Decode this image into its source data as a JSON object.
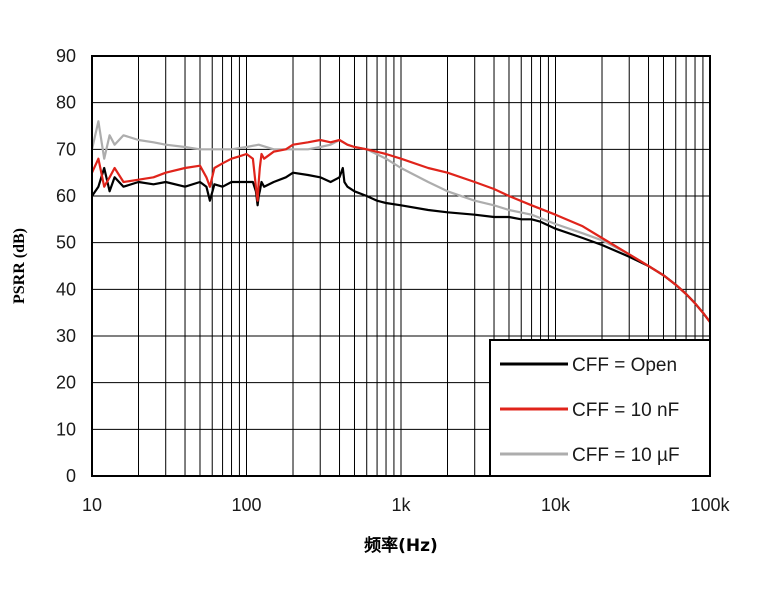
{
  "chart_data": {
    "type": "line",
    "title": "",
    "xlabel": "频率(Hz)",
    "ylabel": "PSRR (dB)",
    "x_scale": "log",
    "xlim": [
      10,
      100000
    ],
    "ylim": [
      0,
      90
    ],
    "x_ticks": [
      10,
      100,
      1000,
      10000,
      100000
    ],
    "x_tick_labels": [
      "10",
      "100",
      "1k",
      "10k",
      "100k"
    ],
    "y_ticks": [
      0,
      10,
      20,
      30,
      40,
      50,
      60,
      70,
      80,
      90
    ],
    "y_tick_labels": [
      "0",
      "10",
      "20",
      "30",
      "40",
      "50",
      "60",
      "70",
      "80",
      "90"
    ],
    "grid": true,
    "legend_position": "bottom-right",
    "series": [
      {
        "name": "CFF = Open",
        "color": "#000000",
        "x": [
          10,
          11,
          12,
          13,
          14,
          16,
          20,
          25,
          30,
          40,
          50,
          55,
          58,
          62,
          70,
          80,
          90,
          100,
          110,
          115,
          118,
          120,
          122,
          125,
          130,
          150,
          180,
          200,
          250,
          300,
          350,
          400,
          420,
          430,
          450,
          500,
          600,
          700,
          800,
          1000,
          1500,
          2000,
          3000,
          4000,
          5000,
          6000,
          7000,
          8000,
          10000,
          15000,
          20000,
          30000,
          40000,
          50000,
          60000,
          70000,
          80000,
          90000,
          100000
        ],
        "values": [
          60,
          62,
          66,
          61,
          64,
          62,
          63,
          62.5,
          63,
          62,
          63,
          62,
          59,
          62.5,
          62,
          63,
          63,
          63,
          63,
          61,
          58,
          60,
          61,
          63,
          62,
          63,
          64,
          65,
          64.5,
          64,
          63,
          64,
          66,
          63,
          62,
          61,
          60,
          59,
          58.5,
          58,
          57,
          56.5,
          56,
          55.5,
          55.5,
          55,
          55,
          54.5,
          53,
          51,
          49.5,
          47,
          45,
          43,
          41,
          39,
          37,
          35,
          33
        ]
      },
      {
        "name": "CFF = 10 nF",
        "color": "#e0241b",
        "x": [
          10,
          11,
          12,
          13,
          14,
          16,
          20,
          25,
          30,
          40,
          50,
          55,
          58,
          62,
          70,
          80,
          90,
          100,
          110,
          115,
          118,
          120,
          122,
          125,
          130,
          150,
          180,
          200,
          250,
          300,
          350,
          400,
          450,
          500,
          600,
          800,
          1000,
          1500,
          2000,
          3000,
          4000,
          5000,
          7000,
          10000,
          15000,
          20000,
          30000,
          40000,
          50000,
          60000,
          70000,
          80000,
          90000,
          100000
        ],
        "values": [
          65,
          68,
          62,
          64,
          66,
          63,
          63.5,
          64,
          65,
          66,
          66.5,
          64,
          62,
          66,
          67,
          68,
          68.5,
          69,
          68,
          62,
          59,
          63,
          66,
          69,
          68,
          69.5,
          70,
          71,
          71.5,
          72,
          71.5,
          72,
          71,
          70.5,
          70,
          69,
          68,
          66,
          65,
          63,
          61.5,
          60,
          58,
          56,
          53.5,
          51,
          47.5,
          45,
          43,
          41,
          39,
          37,
          35,
          33
        ]
      },
      {
        "name": "CFF = 10 µF",
        "color": "#adadad",
        "x": [
          10,
          11,
          12,
          13,
          14,
          16,
          20,
          25,
          30,
          40,
          50,
          60,
          70,
          80,
          100,
          120,
          150,
          200,
          250,
          300,
          350,
          400,
          450,
          500,
          600,
          800,
          1000,
          1500,
          2000,
          3000,
          4000,
          5000,
          7000,
          10000,
          15000,
          20000,
          30000,
          40000,
          50000,
          60000,
          70000,
          80000,
          90000,
          100000
        ],
        "values": [
          70,
          76,
          68,
          73,
          71,
          73,
          72,
          71.5,
          71,
          70.5,
          70,
          70,
          70,
          70,
          70.5,
          71,
          70,
          70,
          70,
          70.5,
          71,
          72,
          71,
          70.5,
          70,
          68,
          66,
          63,
          61,
          59,
          58,
          57,
          56,
          54,
          52,
          50.5,
          47.5,
          45,
          43,
          41,
          39,
          37,
          35,
          33
        ]
      }
    ]
  }
}
